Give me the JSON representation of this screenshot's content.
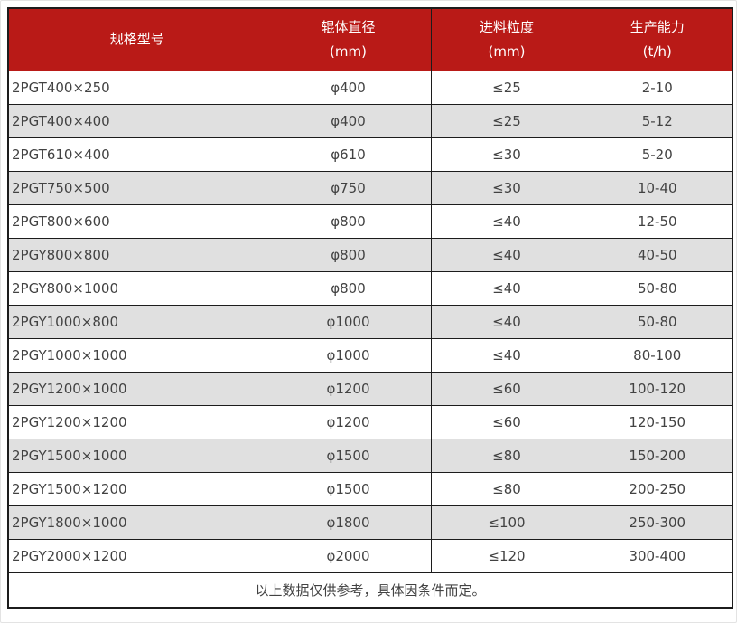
{
  "colors": {
    "header_bg": "#b91a17",
    "header_text": "#ffffff",
    "row_bg": "#ffffff",
    "row_alt_bg": "#e0e0e0",
    "border": "#1c1c1c",
    "body_text": "#424242"
  },
  "headers": [
    {
      "title": "规格型号",
      "unit": ""
    },
    {
      "title": "辊体直径",
      "unit": "(mm)"
    },
    {
      "title": "进料粒度",
      "unit": "(mm)"
    },
    {
      "title": "生产能力",
      "unit": "(t/h)"
    }
  ],
  "footnote": "以上数据仅供参考，具体因条件而定。",
  "chart_data": {
    "type": "table",
    "title": "",
    "columns": [
      "规格型号",
      "辊体直径 (mm)",
      "进料粒度 (mm)",
      "生产能力 (t/h)"
    ],
    "rows": [
      [
        "2PGT400×250",
        "φ400",
        "≤25",
        "2-10"
      ],
      [
        "2PGT400×400",
        "φ400",
        "≤25",
        "5-12"
      ],
      [
        "2PGT610×400",
        "φ610",
        "≤30",
        "5-20"
      ],
      [
        "2PGT750×500",
        "φ750",
        "≤30",
        "10-40"
      ],
      [
        "2PGT800×600",
        "φ800",
        "≤40",
        "12-50"
      ],
      [
        "2PGY800×800",
        "φ800",
        "≤40",
        "40-50"
      ],
      [
        "2PGY800×1000",
        "φ800",
        "≤40",
        "50-80"
      ],
      [
        "2PGY1000×800",
        "φ1000",
        "≤40",
        "50-80"
      ],
      [
        "2PGY1000×1000",
        "φ1000",
        "≤40",
        "80-100"
      ],
      [
        "2PGY1200×1000",
        "φ1200",
        "≤60",
        "100-120"
      ],
      [
        "2PGY1200×1200",
        "φ1200",
        "≤60",
        "120-150"
      ],
      [
        "2PGY1500×1000",
        "φ1500",
        "≤80",
        "150-200"
      ],
      [
        "2PGY1500×1200",
        "φ1500",
        "≤80",
        "200-250"
      ],
      [
        "2PGY1800×1000",
        "φ1800",
        "≤100",
        "250-300"
      ],
      [
        "2PGY2000×1200",
        "φ2000",
        "≤120",
        "300-400"
      ]
    ]
  }
}
